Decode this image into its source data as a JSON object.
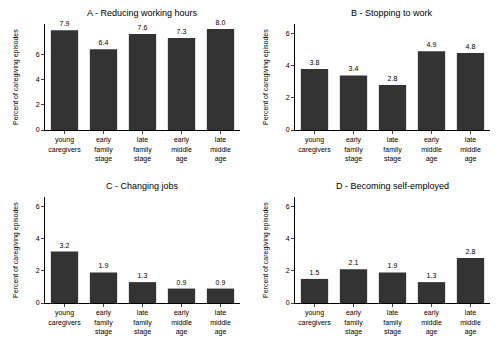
{
  "chart_data": [
    {
      "type": "bar",
      "title": "A - Reducing working hours",
      "y_label": "Percent of caregiving episodes",
      "categories": [
        "young caregivers",
        "early family stage",
        "late family stage",
        "early middle age",
        "late middle age"
      ],
      "values": [
        7.9,
        6.4,
        7.6,
        7.3,
        8.0
      ],
      "value_labels": [
        "7.9",
        "6.4",
        "7.6",
        "7.3",
        "8.0"
      ],
      "color": "#333333",
      "ylim": [
        0,
        8.4
      ],
      "yticks": [
        0,
        2,
        4,
        6
      ],
      "grid": false,
      "data_labels": true
    },
    {
      "type": "bar",
      "title": "B - Stopping to work",
      "y_label": "Percent of caregiving episodes",
      "categories": [
        "young caregivers",
        "early family stage",
        "late family stage",
        "early middle age",
        "late middle age"
      ],
      "values": [
        3.8,
        3.4,
        2.8,
        4.9,
        4.8
      ],
      "value_labels": [
        "3.8",
        "3.4",
        "2.8",
        "4.9",
        "4.8"
      ],
      "color": "#333333",
      "ylim": [
        0,
        6.6
      ],
      "yticks": [
        0,
        2,
        4,
        6
      ],
      "grid": false,
      "data_labels": true
    },
    {
      "type": "bar",
      "title": "C - Changing jobs",
      "y_label": "Percent of caregiving episodes",
      "categories": [
        "young caregivers",
        "early family stage",
        "late family stage",
        "early middle age",
        "late middle age"
      ],
      "values": [
        3.2,
        1.9,
        1.3,
        0.9,
        0.9
      ],
      "value_labels": [
        "3.2",
        "1.9",
        "1.3",
        "0.9",
        "0.9"
      ],
      "color": "#333333",
      "ylim": [
        0,
        6.6
      ],
      "yticks": [
        0,
        2,
        4,
        6
      ],
      "grid": false,
      "data_labels": true
    },
    {
      "type": "bar",
      "title": "D - Becoming self-employed",
      "y_label": "Percent of caregiving episodes",
      "categories": [
        "young caregivers",
        "early family stage",
        "late family stage",
        "early middle age",
        "late middle age"
      ],
      "values": [
        1.5,
        2.1,
        1.9,
        1.3,
        2.8
      ],
      "value_labels": [
        "1.5",
        "2.1",
        "1.9",
        "1.3",
        "2.8"
      ],
      "color": "#333333",
      "ylim": [
        0,
        6.6
      ],
      "yticks": [
        0,
        2,
        4,
        6
      ],
      "grid": false,
      "data_labels": true
    }
  ]
}
